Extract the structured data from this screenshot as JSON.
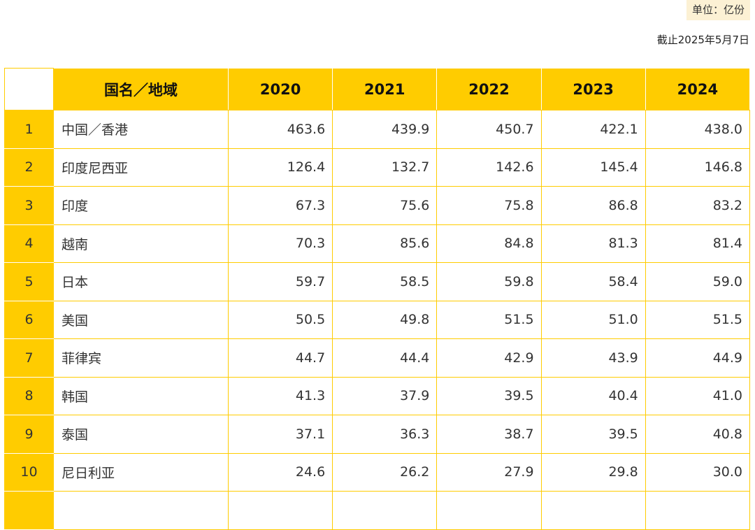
{
  "unit_label": "单位：亿份",
  "as_of": "截止2025年5月7日",
  "header": {
    "country": "国名／地域",
    "years": [
      "2020",
      "2021",
      "2022",
      "2023",
      "2024"
    ]
  },
  "rows": [
    {
      "rank": "1",
      "name": "中国／香港",
      "values": [
        "463.6",
        "439.9",
        "450.7",
        "422.1",
        "438.0"
      ]
    },
    {
      "rank": "2",
      "name": "印度尼西亚",
      "values": [
        "126.4",
        "132.7",
        "142.6",
        "145.4",
        "146.8"
      ]
    },
    {
      "rank": "3",
      "name": "印度",
      "values": [
        "67.3",
        "75.6",
        "75.8",
        "86.8",
        "83.2"
      ]
    },
    {
      "rank": "4",
      "name": "越南",
      "values": [
        "70.3",
        "85.6",
        "84.8",
        "81.3",
        "81.4"
      ]
    },
    {
      "rank": "5",
      "name": "日本",
      "values": [
        "59.7",
        "58.5",
        "59.8",
        "58.4",
        "59.0"
      ]
    },
    {
      "rank": "6",
      "name": "美国",
      "values": [
        "50.5",
        "49.8",
        "51.5",
        "51.0",
        "51.5"
      ]
    },
    {
      "rank": "7",
      "name": "菲律宾",
      "values": [
        "44.7",
        "44.4",
        "42.9",
        "43.9",
        "44.9"
      ]
    },
    {
      "rank": "8",
      "name": "韩国",
      "values": [
        "41.3",
        "37.9",
        "39.5",
        "40.4",
        "41.0"
      ]
    },
    {
      "rank": "9",
      "name": "泰国",
      "values": [
        "37.1",
        "36.3",
        "38.7",
        "39.5",
        "40.8"
      ]
    },
    {
      "rank": "10",
      "name": "尼日利亚",
      "values": [
        "24.6",
        "26.2",
        "27.9",
        "29.8",
        "30.0"
      ]
    }
  ],
  "colors": {
    "accent": "#ffcc00",
    "unit_bg": "#fcf1d4"
  }
}
